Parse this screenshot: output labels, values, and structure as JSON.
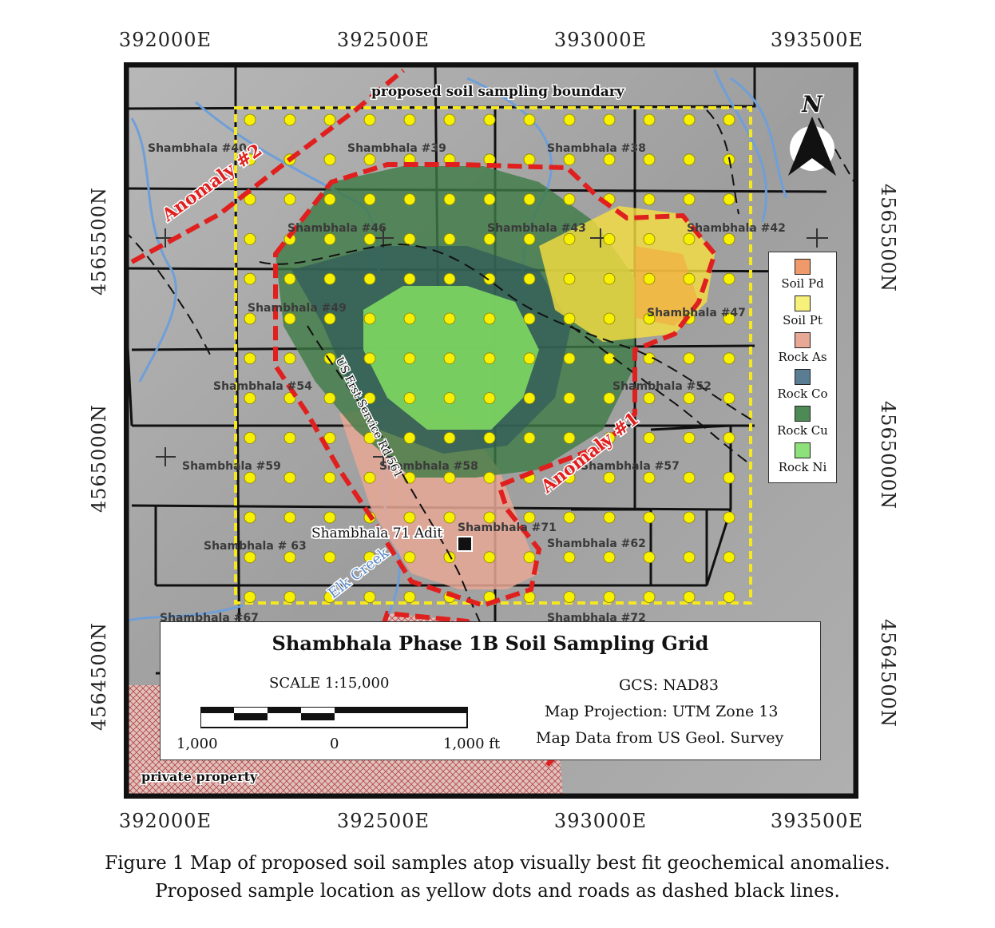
{
  "coordinates": {
    "top": [
      "392000E",
      "392500E",
      "393000E",
      "393500E"
    ],
    "bottom": [
      "392000E",
      "392500E",
      "393000E",
      "393500E"
    ],
    "left": [
      "4565500N",
      "4565000N",
      "4564500N"
    ],
    "right": [
      "4565500N",
      "4565000N",
      "4564500N"
    ]
  },
  "map": {
    "boundary_label": "proposed soil sampling boundary",
    "anomaly_labels": [
      "Anomaly #2",
      "Anomaly #1"
    ],
    "road_label": "US Frst Service Rd 561",
    "creek_label": "Elk Creek",
    "adit_label": "Shambhala 71 Adit",
    "private_label": "private property",
    "north_label": "N",
    "north_icon": "north-arrow-icon",
    "parcels": [
      "Shambhala #40",
      "Shambhala #39",
      "Shambhala #38",
      "Shambhala #46",
      "Shambhala #43",
      "Shambhala #42",
      "Shambhala #49",
      "Shambhala #47",
      "Shambhala #54",
      "Shambhala #52",
      "Shambhala #59",
      "Shambhala #58",
      "Shambhala #57",
      "Shambhala # 63",
      "Shambhala #71",
      "Shambhala #62",
      "Shambhala #67",
      "Shambhala #72"
    ],
    "colors": {
      "sample_dot": "#f7f000",
      "boundary": "#f5e81e",
      "anomaly": "#e0201f",
      "creek": "#6f9fd8",
      "background": "#a8a8a8"
    }
  },
  "legend": {
    "items": [
      {
        "label": "Soil Pd",
        "color": "#f0996a"
      },
      {
        "label": "Soil Pt",
        "color": "#f7f07a"
      },
      {
        "label": "Rock As",
        "color": "#e8a896"
      },
      {
        "label": "Rock Co",
        "color": "#5a7d94"
      },
      {
        "label": "Rock Cu",
        "color": "#4e8a56"
      },
      {
        "label": "Rock Ni",
        "color": "#8ee07a"
      }
    ]
  },
  "title_box": {
    "title": "Shambhala Phase 1B Soil Sampling Grid",
    "scale": "SCALE 1:15,000",
    "scale_ticks": [
      "1,000",
      "0",
      "1,000 ft"
    ],
    "gcs": "GCS: NAD83",
    "projection": "Map Projection: UTM Zone 13",
    "data_source": "Map Data from US Geol. Survey"
  },
  "caption": {
    "line1": "Figure 1 Map of proposed soil samples atop visually best fit geochemical anomalies.",
    "line2": "Proposed sample location as yellow dots and roads as dashed black lines."
  }
}
